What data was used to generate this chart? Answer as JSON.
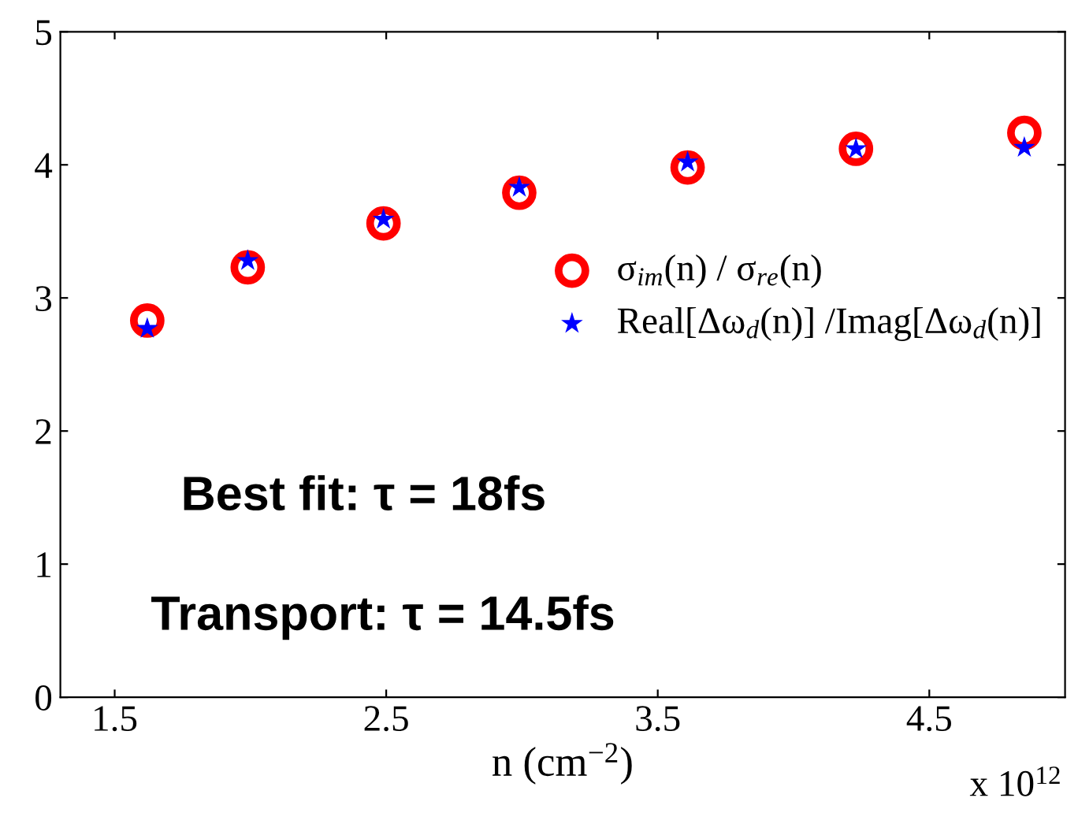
{
  "chart_data": {
    "type": "scatter",
    "xlabel": "n (cm$^{−2}$)",
    "x": [
      1.62,
      1.99,
      2.49,
      2.99,
      3.61,
      4.23,
      4.85
    ],
    "series": [
      {
        "name": "σ$_{im}$(n) / σ$_{re}$(n)",
        "color": "#ff0000",
        "marker": "circle",
        "values": [
          2.83,
          3.23,
          3.56,
          3.79,
          3.98,
          4.12,
          4.24
        ]
      },
      {
        "name": "Real[Δω$_{d}$(n)] /Imag[Δω$_{d}$(n)]",
        "color": "#0000ff",
        "marker": "star",
        "values": [
          2.77,
          3.28,
          3.59,
          3.83,
          4.02,
          4.12,
          4.13
        ]
      }
    ],
    "xlim": [
      1.3,
      5.0
    ],
    "ylim": [
      0,
      5
    ],
    "xticks": [
      1.5,
      2.5,
      3.5,
      4.5
    ],
    "yticks": [
      0,
      1,
      2,
      3,
      4,
      5
    ],
    "grid": false,
    "legend": "right",
    "annotations": [
      "Best fit: τ = 18fs",
      "Transport: τ = 14.5fs",
      "x 10$^{12}$"
    ]
  }
}
